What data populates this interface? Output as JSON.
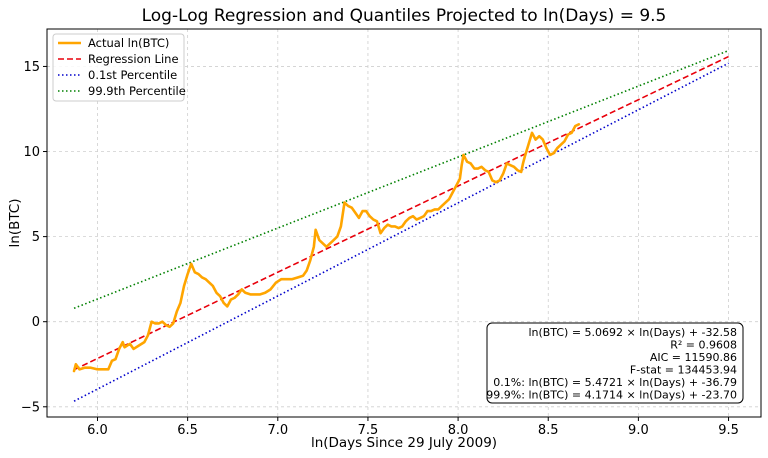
{
  "chart_data": {
    "type": "line",
    "title": "Log-Log Regression and Quantiles Projected to ln(Days) = 9.5",
    "xlabel": "ln(Days Since 29 July 2009)",
    "ylabel": "ln(BTC)",
    "xlim": [
      5.72,
      9.68
    ],
    "ylim": [
      -5.6,
      17.2
    ],
    "xticks": [
      6.0,
      6.5,
      7.0,
      7.5,
      8.0,
      8.5,
      9.0,
      9.5
    ],
    "xtick_labels": [
      "6.0",
      "6.5",
      "7.0",
      "7.5",
      "8.0",
      "8.5",
      "9.0",
      "9.5"
    ],
    "yticks": [
      -5,
      0,
      5,
      10,
      15
    ],
    "ytick_labels": [
      "−5",
      "0",
      "5",
      "10",
      "15"
    ],
    "grid": true,
    "legend_position": "top-left",
    "series": [
      {
        "name": "Actual ln(BTC)",
        "style": "solid",
        "color": "#ffa500",
        "x": [
          5.87,
          5.88,
          5.9,
          5.93,
          5.96,
          6.0,
          6.03,
          6.06,
          6.08,
          6.1,
          6.12,
          6.14,
          6.15,
          6.18,
          6.2,
          6.23,
          6.26,
          6.28,
          6.3,
          6.32,
          6.34,
          6.36,
          6.38,
          6.4,
          6.42,
          6.44,
          6.46,
          6.48,
          6.5,
          6.52,
          6.54,
          6.56,
          6.58,
          6.6,
          6.62,
          6.64,
          6.66,
          6.68,
          6.7,
          6.72,
          6.74,
          6.76,
          6.78,
          6.8,
          6.82,
          6.85,
          6.88,
          6.9,
          6.93,
          6.96,
          6.99,
          7.02,
          7.05,
          7.08,
          7.11,
          7.14,
          7.16,
          7.18,
          7.2,
          7.21,
          7.23,
          7.25,
          7.27,
          7.29,
          7.31,
          7.33,
          7.35,
          7.37,
          7.39,
          7.41,
          7.43,
          7.45,
          7.47,
          7.49,
          7.51,
          7.53,
          7.55,
          7.57,
          7.59,
          7.61,
          7.63,
          7.65,
          7.67,
          7.69,
          7.71,
          7.73,
          7.75,
          7.77,
          7.79,
          7.81,
          7.83,
          7.85,
          7.87,
          7.89,
          7.91,
          7.93,
          7.95,
          7.97,
          7.99,
          8.01,
          8.02,
          8.03,
          8.05,
          8.07,
          8.09,
          8.11,
          8.13,
          8.15,
          8.17,
          8.19,
          8.21,
          8.23,
          8.25,
          8.27,
          8.29,
          8.31,
          8.33,
          8.35,
          8.36,
          8.37,
          8.39,
          8.41,
          8.43,
          8.45,
          8.47,
          8.49,
          8.51,
          8.53,
          8.55,
          8.57,
          8.59,
          8.61,
          8.63,
          8.65,
          8.67
        ],
        "y": [
          -2.9,
          -2.5,
          -2.8,
          -2.7,
          -2.7,
          -2.8,
          -2.8,
          -2.8,
          -2.3,
          -2.2,
          -1.6,
          -1.2,
          -1.5,
          -1.3,
          -1.6,
          -1.4,
          -1.2,
          -0.8,
          0.0,
          -0.1,
          -0.1,
          0.0,
          -0.2,
          -0.3,
          -0.1,
          0.6,
          1.1,
          2.1,
          2.8,
          3.4,
          2.9,
          2.8,
          2.6,
          2.5,
          2.3,
          2.1,
          1.7,
          1.5,
          1.1,
          0.9,
          1.3,
          1.4,
          1.6,
          1.9,
          1.7,
          1.6,
          1.6,
          1.6,
          1.7,
          1.9,
          2.3,
          2.5,
          2.5,
          2.5,
          2.6,
          2.7,
          3.0,
          3.6,
          4.4,
          5.4,
          4.8,
          4.6,
          4.4,
          4.6,
          4.8,
          5.0,
          5.6,
          7.0,
          6.8,
          6.7,
          6.4,
          6.1,
          6.5,
          6.5,
          6.2,
          6.0,
          5.9,
          5.2,
          5.5,
          5.7,
          5.6,
          5.6,
          5.5,
          5.6,
          5.9,
          6.1,
          6.2,
          6.0,
          6.1,
          6.2,
          6.5,
          6.5,
          6.6,
          6.6,
          6.8,
          7.0,
          7.2,
          7.6,
          8.0,
          8.4,
          9.2,
          9.8,
          9.4,
          9.3,
          9.0,
          9.0,
          9.1,
          8.9,
          8.8,
          8.3,
          8.2,
          8.3,
          8.7,
          9.3,
          9.2,
          9.1,
          8.9,
          8.8,
          9.3,
          9.7,
          10.4,
          11.1,
          10.7,
          10.9,
          10.7,
          10.2,
          9.8,
          9.9,
          10.2,
          10.4,
          10.6,
          11.0,
          11.1,
          11.5,
          11.6
        ]
      },
      {
        "name": "Regression Line",
        "style": "dashed",
        "color": "#e8000b",
        "x": [
          5.87,
          9.5
        ],
        "y": [
          -2.82,
          15.58
        ]
      },
      {
        "name": "0.1st Percentile",
        "style": "dotted",
        "color": "#0000cc",
        "x": [
          5.87,
          9.5
        ],
        "y": [
          -4.67,
          15.19
        ]
      },
      {
        "name": "99.9th Percentile",
        "style": "dotted",
        "color": "#008000",
        "x": [
          5.87,
          9.5
        ],
        "y": [
          0.79,
          15.93
        ]
      }
    ],
    "stats_box": [
      "ln(BTC) = 5.0692 × ln(Days) + -32.58",
      "R² = 0.9608",
      "AIC = 11590.86",
      "F-stat = 134453.94",
      "0.1%: ln(BTC) = 5.4721 × ln(Days) + -36.79",
      "99.9%: ln(BTC) = 4.1714 × ln(Days) + -23.70"
    ]
  }
}
